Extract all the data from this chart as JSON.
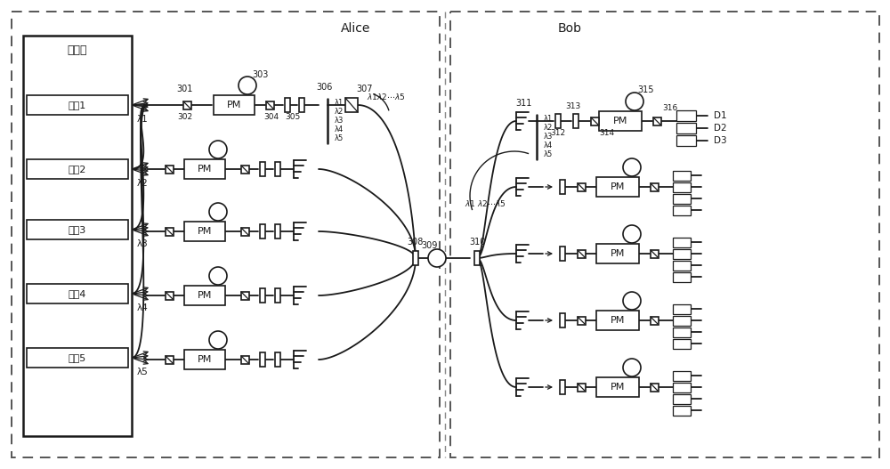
{
  "bg_color": "#ffffff",
  "lc": "#1a1a1a",
  "fig_w": 10.0,
  "fig_h": 5.27,
  "dpi": 100,
  "alice_label": "Alice",
  "bob_label": "Bob",
  "laser_panel_label": "激光板",
  "sources": [
    "光源1",
    "光源2",
    "光源3",
    "光源4",
    "光源5"
  ],
  "lambdas": [
    "λ1",
    "λ2",
    "λ3",
    "λ4",
    "λ5"
  ],
  "pm_label": "PM",
  "detectors": [
    "D1",
    "D2",
    "D3"
  ],
  "ref_nums_alice": [
    "301",
    "302",
    "303",
    "304",
    "305",
    "306",
    "307",
    "308"
  ],
  "ref_nums_bob": [
    "309",
    "310",
    "311",
    "312",
    "313",
    "314",
    "315",
    "316"
  ]
}
